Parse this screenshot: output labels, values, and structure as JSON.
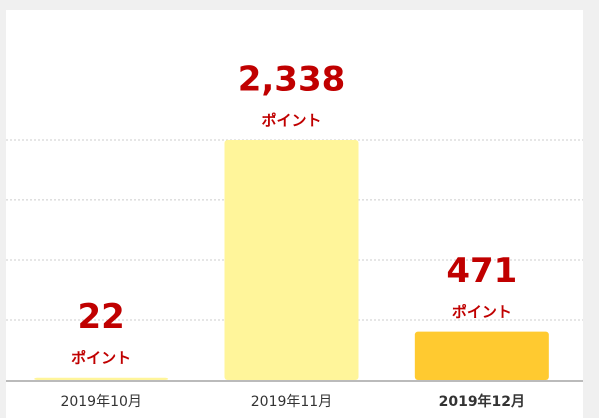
{
  "chart_data": {
    "type": "bar",
    "categories": [
      "2019年10月",
      "2019年11月",
      "2019年12月"
    ],
    "values": [
      22,
      2338,
      471
    ],
    "value_labels": [
      "22",
      "2,338",
      "471"
    ],
    "unit": "ポイント",
    "colors": [
      "#fff59a",
      "#fff59a",
      "#ffca30"
    ],
    "highlight": 2,
    "ylim": [
      0,
      3604
    ],
    "gridlines": [
      585,
      1169,
      1754,
      2338
    ],
    "grid": true
  }
}
